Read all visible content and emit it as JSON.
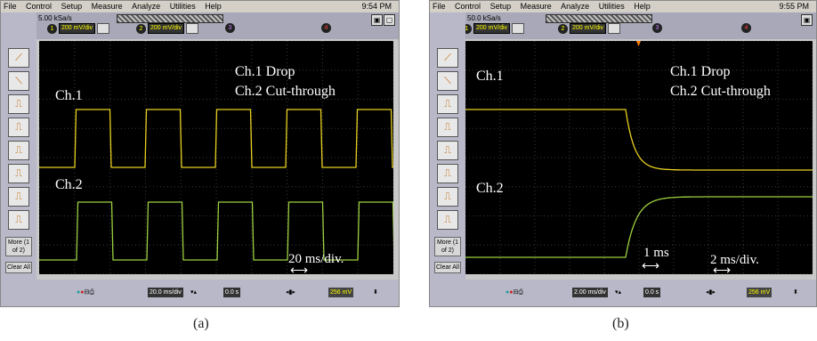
{
  "panel_a": {
    "menu": [
      "File",
      "Control",
      "Setup",
      "Measure",
      "Analyze",
      "Utilities",
      "Help"
    ],
    "time": "9:54 PM",
    "sample_rate": "5.00 kSa/s",
    "channels": [
      {
        "num": "1",
        "label": "200 mV/div"
      },
      {
        "num": "2",
        "label": "200 mV/div"
      },
      {
        "num": "3",
        "label": ""
      },
      {
        "num": "4",
        "label": ""
      }
    ],
    "side_more": "More (1 of 2)",
    "side_clear": "Clear All",
    "timebase": "20.0 ms/div",
    "delay": "0.0 s",
    "trigger_level": "256 mV",
    "overlay": {
      "ch1_drop": "Ch.1 Drop",
      "ch2_cut": "Ch.2 Cut-through",
      "ch1_label": "Ch.1",
      "ch2_label": "Ch.2",
      "scale": "20 ms/div.",
      "arrow": "⟷"
    },
    "caption": "(a)"
  },
  "panel_b": {
    "menu": [
      "File",
      "Control",
      "Setup",
      "Measure",
      "Analyze",
      "Utilities",
      "Help"
    ],
    "time": "9:55 PM",
    "sample_rate": "50.0 kSa/s",
    "channels": [
      {
        "num": "1",
        "label": "200 mV/div"
      },
      {
        "num": "2",
        "label": "200 mV/div"
      },
      {
        "num": "3",
        "label": ""
      },
      {
        "num": "4",
        "label": ""
      }
    ],
    "side_more": "More (1 of 2)",
    "side_clear": "Clear All",
    "timebase": "2.00 ms/div",
    "delay": "0.0 s",
    "trigger_level": "256 mV",
    "overlay": {
      "ch1_drop": "Ch.1 Drop",
      "ch2_cut": "Ch.2 Cut-through",
      "ch1_label": "Ch.1",
      "ch2_label": "Ch.2",
      "interval": "1 ms",
      "scale": "2 ms/div.",
      "arrow": "⟷"
    },
    "caption": "(b)"
  },
  "colors": {
    "trace_ch1": "#e8d020",
    "trace_ch2": "#9cd040",
    "grid": "#3a3a3a",
    "screen_bg": "#000000"
  },
  "icons": [
    "edge-trigger-icon",
    "falling-edge-icon",
    "pulse-icon",
    "more-icon",
    "clear-icon",
    "trigger-marker-icon"
  ]
}
